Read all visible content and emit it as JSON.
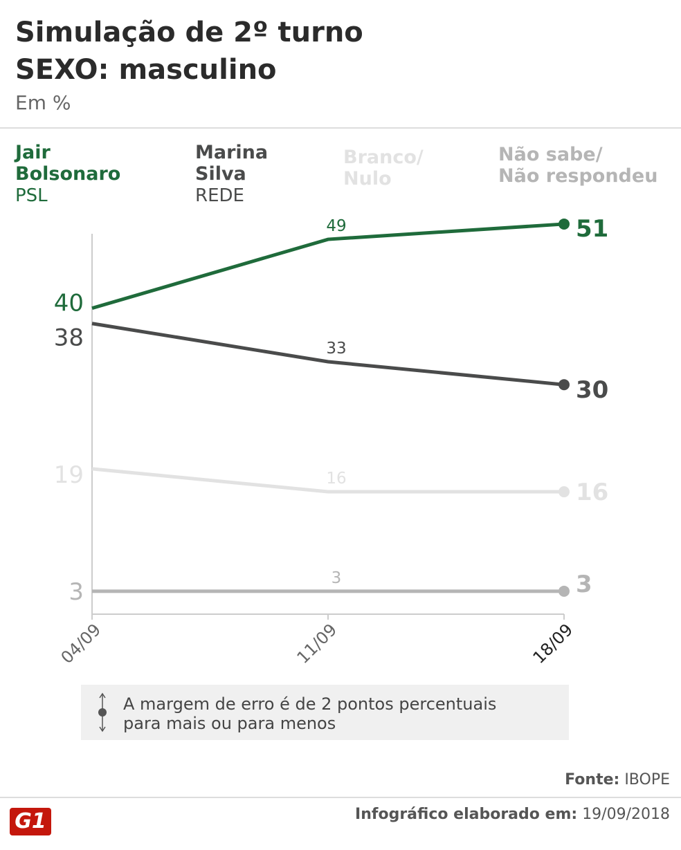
{
  "chart_data": {
    "type": "line",
    "title": "Simulação de 2º turno",
    "subtitle": "SEXO: masculino",
    "unit": "Em %",
    "x": [
      "04/09",
      "11/09",
      "18/09"
    ],
    "series": [
      {
        "name": "Jair\nBolsonaro",
        "party": "PSL",
        "color": "#1f6b3b",
        "values": [
          40,
          49,
          51
        ]
      },
      {
        "name": "Marina\nSilva",
        "party": "REDE",
        "color": "#4a4b4b",
        "values": [
          38,
          33,
          30
        ]
      },
      {
        "name": "Branco/\nNulo",
        "color": "#e2e2e2",
        "values": [
          19,
          16,
          16
        ]
      },
      {
        "name": "Não sabe/\nNão respondeu",
        "color": "#b5b5b5",
        "values": [
          3,
          3,
          3
        ]
      }
    ],
    "ylim": [
      0,
      50
    ]
  },
  "note": "A margem de erro é de 2 pontos percentuais para mais ou para menos",
  "source": {
    "label": "Fonte:",
    "value": "IBOPE"
  },
  "footer": {
    "label": "Infográfico elaborado em:",
    "value": "19/09/2018"
  },
  "logo": "G1"
}
